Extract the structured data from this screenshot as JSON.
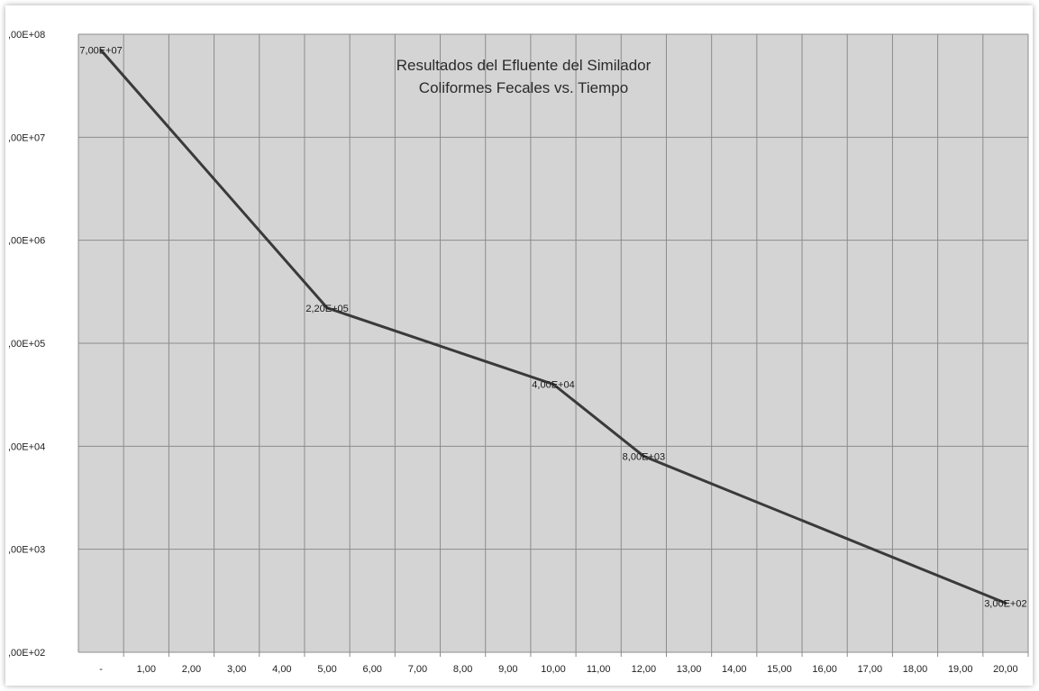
{
  "chart_data": {
    "type": "line",
    "title": [
      "Resultados del Efluente del Similador",
      "Coliformes Fecales vs. Tiempo"
    ],
    "xlabel": "",
    "ylabel": "",
    "y_scale": "log",
    "ylim": [
      100,
      100000000
    ],
    "xlim": [
      0,
      20
    ],
    "grid": true,
    "legend": "none",
    "x_ticks": [
      "-",
      "1,00",
      "2,00",
      "3,00",
      "4,00",
      "5,00",
      "6,00",
      "7,00",
      "8,00",
      "9,00",
      "10,00",
      "11,00",
      "12,00",
      "13,00",
      "14,00",
      "15,00",
      "16,00",
      "17,00",
      "18,00",
      "19,00",
      "20,00"
    ],
    "y_ticks": [
      {
        "value": 100000000,
        "label": ",00E+08"
      },
      {
        "value": 10000000,
        "label": ",00E+07"
      },
      {
        "value": 1000000,
        "label": ",00E+06"
      },
      {
        "value": 100000,
        "label": ",00E+05"
      },
      {
        "value": 10000,
        "label": ",00E+04"
      },
      {
        "value": 1000,
        "label": ",00E+03"
      },
      {
        "value": 100,
        "label": ",00E+02"
      }
    ],
    "series": [
      {
        "x": [
          0,
          5,
          10,
          12,
          20
        ],
        "y": [
          70000000,
          220000,
          40000,
          8000,
          300
        ],
        "labels": [
          "7,00E+07",
          "2,20E+05",
          "4,00E+04",
          "8,00E+03",
          "3,00E+02"
        ],
        "color": "#3a3a3a"
      }
    ],
    "colors": {
      "plot_background": "#d4d4d4",
      "gridline": "#8c8c8c",
      "line": "#3a3a3a"
    }
  }
}
